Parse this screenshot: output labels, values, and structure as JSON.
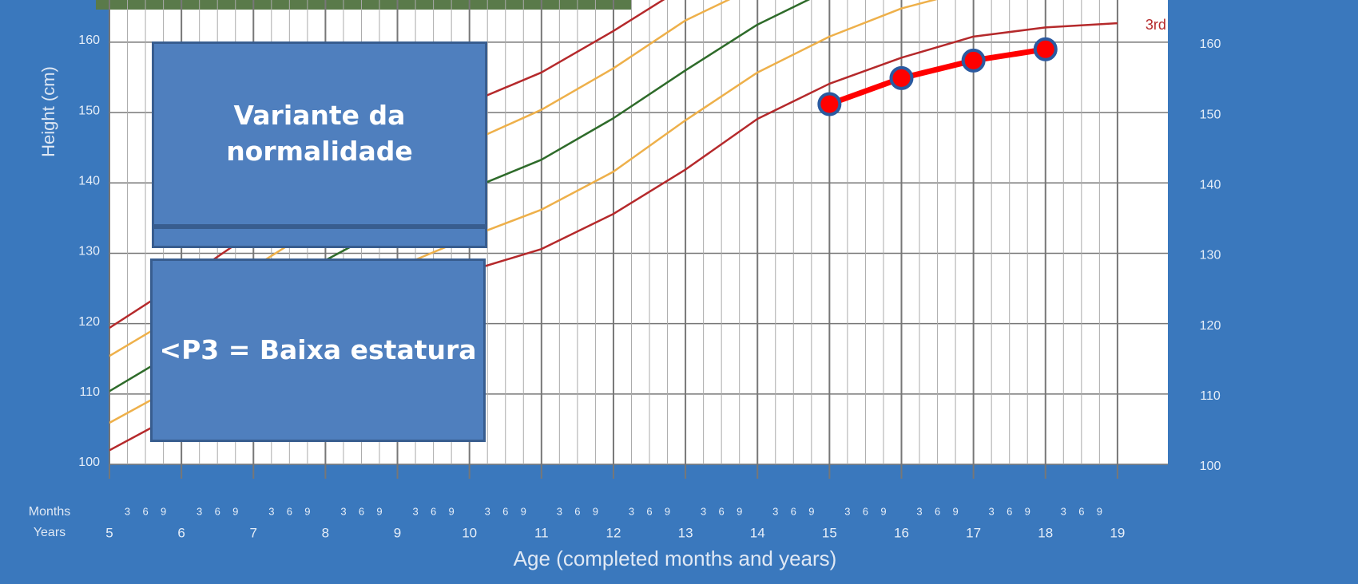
{
  "chart_data": {
    "type": "line",
    "y_label": "Height (cm)",
    "x_label": "Age (completed months and years)",
    "months_row_label": "Months",
    "years_row_label": "Years",
    "months": [
      3,
      6,
      9
    ],
    "x": [
      5,
      6,
      7,
      8,
      9,
      10,
      11,
      12,
      13,
      14,
      15,
      16,
      17,
      18,
      19
    ],
    "xlim": [
      5,
      19.7
    ],
    "xticks": [
      5,
      6,
      7,
      8,
      9,
      10,
      11,
      12,
      13,
      14,
      15,
      16,
      17,
      18,
      19
    ],
    "ylim": [
      100,
      166
    ],
    "yticks": [
      100,
      110,
      120,
      130,
      140,
      150,
      160
    ],
    "grid": true,
    "series": [
      {
        "name": "3rd",
        "color": "#b5292b",
        "values": [
          102,
          107.5,
          113,
          118,
          123,
          127.5,
          130.6,
          135.6,
          141.9,
          149.1,
          154.1,
          157.8,
          160.8,
          162.1,
          162.7
        ]
      },
      {
        "color": "#eeb04a",
        "values": [
          105.9,
          111.5,
          117.5,
          123,
          128,
          132.3,
          136.2,
          141.6,
          148.9,
          155.7,
          160.8,
          164.8,
          167.5,
          null,
          null
        ]
      },
      {
        "color": "#2e6b2a",
        "values": [
          110.4,
          116.5,
          123,
          129,
          134.5,
          139.1,
          143.3,
          149.2,
          156,
          162.5,
          167.5,
          null,
          null,
          null,
          null
        ]
      },
      {
        "color": "#eeb04a",
        "values": [
          115.4,
          121.5,
          128,
          134.5,
          140,
          145.8,
          150.4,
          156.3,
          163.1,
          168,
          null,
          null,
          null,
          null,
          null
        ]
      },
      {
        "color": "#b5292b",
        "values": [
          119.4,
          126,
          133,
          139.5,
          145.5,
          151.4,
          155.7,
          161.6,
          168,
          null,
          null,
          null,
          null,
          null,
          null
        ]
      },
      {
        "color": "#ff0000",
        "marker_edge": "#2b5aa0",
        "x": [
          15,
          16,
          17,
          18
        ],
        "values": [
          151.2,
          154.9,
          157.4,
          159.0
        ]
      }
    ],
    "annotations": [
      "Variante da normalidade",
      "<P3 = Baixa estatura"
    ]
  }
}
